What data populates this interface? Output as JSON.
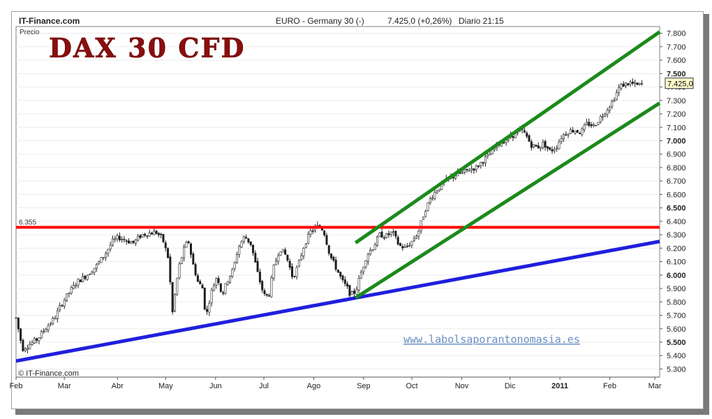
{
  "header": {
    "source": "IT-Finance.com",
    "instrument": "EURO - Germany 30 (-)",
    "price_change": "7.425,0 (+0,26%)",
    "period_time": "Diario  21:15"
  },
  "chart_data": {
    "type": "candlestick",
    "title": "DAX 30 CFD",
    "ylabel": "Precio",
    "watermark": "www.labolsaporantonomasia.es",
    "copyright": "© IT-Finance.com",
    "ylim": [
      5240,
      7850
    ],
    "x_range_days": [
      0,
      400
    ],
    "y_ticks": [
      "5.300",
      "5.400",
      "5.500",
      "5.600",
      "5.700",
      "5.800",
      "5.900",
      "6.000",
      "6.100",
      "6.200",
      "6.300",
      "6.400",
      "6.500",
      "6.600",
      "6.700",
      "6.800",
      "6.900",
      "7.000",
      "7.100",
      "7.200",
      "7.300",
      "7.400",
      "7.500",
      "7.600",
      "7.700",
      "7.800"
    ],
    "y_tick_values": [
      5300,
      5400,
      5500,
      5600,
      5700,
      5800,
      5900,
      6000,
      6100,
      6200,
      6300,
      6400,
      6500,
      6600,
      6700,
      6800,
      6900,
      7000,
      7100,
      7200,
      7300,
      7400,
      7500,
      7600,
      7700,
      7800
    ],
    "x_labels": [
      {
        "label": "Feb",
        "day": 0
      },
      {
        "label": "Mar",
        "day": 30
      },
      {
        "label": "Abr",
        "day": 63
      },
      {
        "label": "May",
        "day": 93
      },
      {
        "label": "Jun",
        "day": 124
      },
      {
        "label": "Jul",
        "day": 154
      },
      {
        "label": "Ago",
        "day": 185
      },
      {
        "label": "Sep",
        "day": 216
      },
      {
        "label": "Oct",
        "day": 246
      },
      {
        "label": "Nov",
        "day": 277
      },
      {
        "label": "Dic",
        "day": 307
      },
      {
        "label": "2011",
        "day": 338,
        "bold": true
      },
      {
        "label": "Feb",
        "day": 369
      },
      {
        "label": "Mar",
        "day": 397
      }
    ],
    "current_price": {
      "value": 7425,
      "label": "7.425,0"
    },
    "resistance": {
      "value": 6355,
      "label": "6.355",
      "color": "#ff0000"
    },
    "trendlines": [
      {
        "name": "support",
        "color": "#1f1fdd",
        "points": [
          [
            0,
            5360
          ],
          [
            400,
            6250
          ]
        ]
      },
      {
        "name": "channel-upper",
        "color": "#1b8a1b",
        "points": [
          [
            211,
            6240
          ],
          [
            400,
            7810
          ]
        ]
      },
      {
        "name": "channel-lower",
        "color": "#1b8a1b",
        "points": [
          [
            211,
            5830
          ],
          [
            400,
            7280
          ]
        ]
      }
    ],
    "anchors": [
      [
        0,
        5680
      ],
      [
        4,
        5450
      ],
      [
        8,
        5480
      ],
      [
        13,
        5520
      ],
      [
        18,
        5600
      ],
      [
        24,
        5680
      ],
      [
        28,
        5780
      ],
      [
        33,
        5870
      ],
      [
        38,
        5950
      ],
      [
        44,
        6000
      ],
      [
        50,
        6070
      ],
      [
        55,
        6150
      ],
      [
        60,
        6250
      ],
      [
        64,
        6280
      ],
      [
        68,
        6260
      ],
      [
        73,
        6240
      ],
      [
        78,
        6300
      ],
      [
        82,
        6310
      ],
      [
        87,
        6320
      ],
      [
        91,
        6270
      ],
      [
        95,
        6110
      ],
      [
        97,
        5700
      ],
      [
        99,
        5880
      ],
      [
        101,
        6050
      ],
      [
        104,
        6180
      ],
      [
        107,
        6260
      ],
      [
        110,
        6080
      ],
      [
        113,
        5950
      ],
      [
        116,
        5900
      ],
      [
        118,
        5680
      ],
      [
        121,
        5860
      ],
      [
        125,
        6000
      ],
      [
        128,
        5850
      ],
      [
        132,
        5980
      ],
      [
        135,
        6040
      ],
      [
        138,
        6200
      ],
      [
        142,
        6290
      ],
      [
        146,
        6230
      ],
      [
        150,
        6020
      ],
      [
        154,
        5850
      ],
      [
        157,
        5840
      ],
      [
        160,
        6050
      ],
      [
        164,
        6200
      ],
      [
        168,
        6140
      ],
      [
        172,
        5980
      ],
      [
        175,
        6060
      ],
      [
        179,
        6220
      ],
      [
        183,
        6320
      ],
      [
        187,
        6360
      ],
      [
        191,
        6340
      ],
      [
        195,
        6150
      ],
      [
        199,
        6050
      ],
      [
        203,
        5950
      ],
      [
        206,
        5900
      ],
      [
        208,
        5850
      ],
      [
        211,
        5880
      ],
      [
        214,
        6000
      ],
      [
        218,
        6150
      ],
      [
        222,
        6210
      ],
      [
        226,
        6300
      ],
      [
        230,
        6290
      ],
      [
        234,
        6320
      ],
      [
        238,
        6220
      ],
      [
        242,
        6200
      ],
      [
        246,
        6250
      ],
      [
        250,
        6320
      ],
      [
        254,
        6480
      ],
      [
        258,
        6580
      ],
      [
        262,
        6640
      ],
      [
        266,
        6690
      ],
      [
        270,
        6720
      ],
      [
        274,
        6750
      ],
      [
        278,
        6760
      ],
      [
        282,
        6790
      ],
      [
        286,
        6800
      ],
      [
        290,
        6850
      ],
      [
        294,
        6890
      ],
      [
        298,
        6960
      ],
      [
        302,
        6990
      ],
      [
        306,
        7020
      ],
      [
        310,
        7050
      ],
      [
        314,
        7080
      ],
      [
        317,
        7040
      ],
      [
        320,
        6970
      ],
      [
        324,
        6950
      ],
      [
        328,
        6980
      ],
      [
        332,
        6920
      ],
      [
        336,
        6960
      ],
      [
        339,
        7030
      ],
      [
        343,
        7070
      ],
      [
        347,
        7080
      ],
      [
        351,
        7060
      ],
      [
        355,
        7130
      ],
      [
        359,
        7110
      ],
      [
        363,
        7170
      ],
      [
        367,
        7230
      ],
      [
        371,
        7300
      ],
      [
        375,
        7400
      ],
      [
        378,
        7420
      ],
      [
        382,
        7430
      ],
      [
        386,
        7410
      ],
      [
        390,
        7425
      ]
    ]
  }
}
